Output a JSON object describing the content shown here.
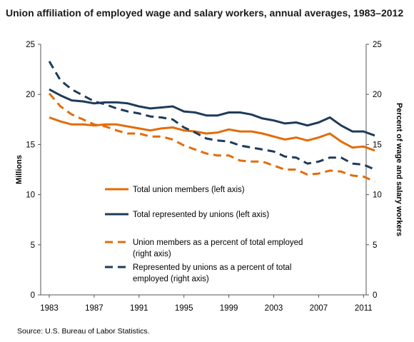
{
  "title": "Union affiliation of employed wage and salary workers, annual averages, 1983–2012",
  "source": "Source: U.S. Bureau of Labor Statistics.",
  "chart_data": {
    "type": "line",
    "ylabel_left": "Millions",
    "ylabel_right": "Percent of wage and salary workers",
    "ylim_left": [
      0,
      25
    ],
    "ylim_right": [
      0,
      25
    ],
    "xlim": [
      1983,
      2012
    ],
    "y_ticks": [
      "0",
      "5",
      "10",
      "15",
      "20",
      "25"
    ],
    "x_ticks": [
      "1983",
      "1987",
      "1991",
      "1995",
      "1999",
      "2003",
      "2007",
      "2011"
    ],
    "grid": false,
    "legend_position": "center",
    "x": [
      1983,
      1984,
      1985,
      1986,
      1987,
      1988,
      1989,
      1990,
      1991,
      1992,
      1993,
      1994,
      1995,
      1996,
      1997,
      1998,
      1999,
      2000,
      2001,
      2002,
      2003,
      2004,
      2005,
      2006,
      2007,
      2008,
      2009,
      2010,
      2011,
      2012
    ],
    "series": [
      {
        "name": "Total union members (left axis)",
        "axis": "left",
        "style": "solid",
        "color": "#e36c0a",
        "values": [
          17.7,
          17.3,
          17.0,
          17.0,
          16.9,
          17.0,
          17.0,
          16.8,
          16.6,
          16.4,
          16.6,
          16.7,
          16.4,
          16.3,
          16.1,
          16.2,
          16.5,
          16.3,
          16.3,
          16.1,
          15.8,
          15.5,
          15.7,
          15.4,
          15.7,
          16.1,
          15.3,
          14.7,
          14.8,
          14.4
        ]
      },
      {
        "name": "Total represented by unions (left axis)",
        "axis": "left",
        "style": "solid",
        "color": "#1f3b5a",
        "values": [
          20.5,
          19.9,
          19.4,
          19.3,
          19.1,
          19.2,
          19.2,
          19.1,
          18.8,
          18.6,
          18.7,
          18.8,
          18.3,
          18.2,
          17.9,
          17.9,
          18.2,
          18.2,
          18.0,
          17.6,
          17.4,
          17.1,
          17.2,
          16.9,
          17.2,
          17.7,
          16.9,
          16.3,
          16.3,
          15.9
        ]
      },
      {
        "name": "Union members as a percent of total  employed (right axis)",
        "axis": "right",
        "style": "dashed",
        "color": "#e36c0a",
        "values": [
          20.1,
          18.8,
          18.0,
          17.5,
          17.0,
          16.8,
          16.4,
          16.1,
          16.1,
          15.8,
          15.8,
          15.5,
          14.9,
          14.5,
          14.1,
          13.9,
          13.9,
          13.4,
          13.3,
          13.3,
          12.9,
          12.5,
          12.5,
          12.0,
          12.1,
          12.4,
          12.3,
          11.9,
          11.8,
          11.3
        ]
      },
      {
        "name": "Represented by unions as a percent of total employed (right axis)",
        "axis": "right",
        "style": "dashed",
        "color": "#1f3b5a",
        "values": [
          23.3,
          21.4,
          20.5,
          19.9,
          19.3,
          19.0,
          18.6,
          18.3,
          18.1,
          17.8,
          17.7,
          17.5,
          16.7,
          16.2,
          15.6,
          15.4,
          15.3,
          14.9,
          14.7,
          14.5,
          14.3,
          13.8,
          13.7,
          13.1,
          13.3,
          13.7,
          13.7,
          13.1,
          13.0,
          12.5
        ]
      }
    ]
  }
}
